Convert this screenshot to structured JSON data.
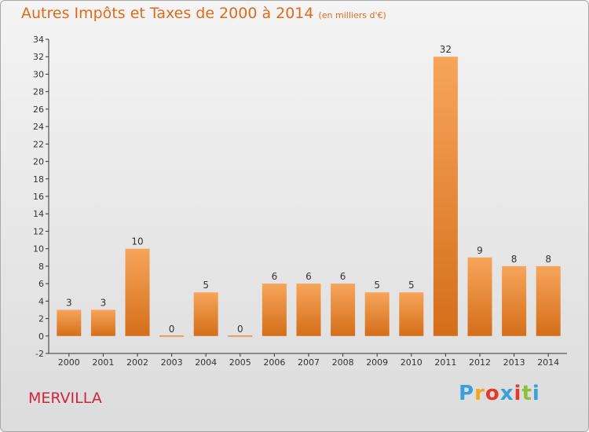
{
  "title": "Autres Impôts et Taxes de 2000 à 2014",
  "subtitle": "(en milliers d'€)",
  "commune": "MERVILLA",
  "brand": {
    "letters": [
      "P",
      "r",
      "o",
      "x",
      "i",
      "t",
      "i"
    ],
    "colors": [
      "#3aa0dc",
      "#f2a51e",
      "#e23a2b",
      "#3aa0dc",
      "#e23a2b",
      "#8cc13f",
      "#3aa0dc"
    ]
  },
  "colors": {
    "title": "#e06a1c",
    "bar_light": "#f7a55a",
    "bar_dark": "#d46e1a",
    "commune": "#d2243f",
    "axis": "#333333"
  },
  "chart_data": {
    "type": "bar",
    "title": "Autres Impôts et Taxes de 2000 à 2014",
    "subtitle": "(en milliers d'€)",
    "categories": [
      "2000",
      "2001",
      "2002",
      "2003",
      "2004",
      "2005",
      "2006",
      "2007",
      "2008",
      "2009",
      "2010",
      "2011",
      "2012",
      "2013",
      "2014"
    ],
    "values": [
      3,
      3,
      10,
      0,
      5,
      0,
      6,
      6,
      6,
      5,
      5,
      32,
      9,
      8,
      8
    ],
    "ylim": [
      -2,
      34
    ],
    "yticks": [
      -2,
      0,
      2,
      4,
      6,
      8,
      10,
      12,
      14,
      16,
      18,
      20,
      22,
      24,
      26,
      28,
      30,
      32,
      34
    ],
    "grid": false,
    "data_labels": true
  }
}
